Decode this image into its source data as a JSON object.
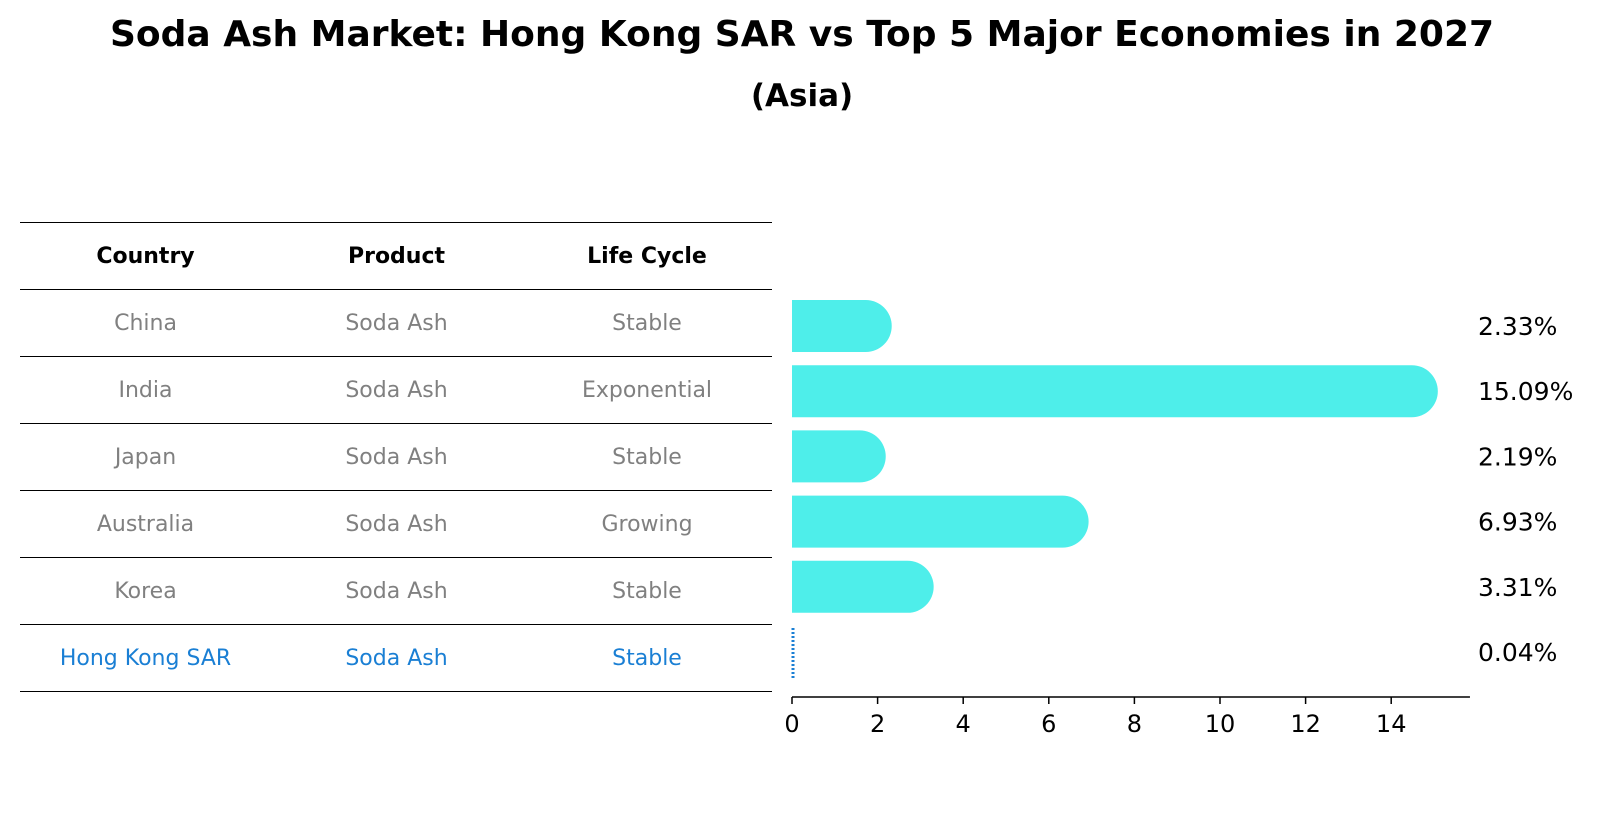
{
  "header": {
    "title": "Soda Ash Market: Hong Kong SAR vs Top 5 Major Economies in 2027",
    "subtitle": "(Asia)"
  },
  "table": {
    "columns": [
      "Country",
      "Product",
      "Life Cycle"
    ],
    "rows": [
      [
        "China",
        "Soda Ash",
        "Stable"
      ],
      [
        "India",
        "Soda Ash",
        "Exponential"
      ],
      [
        "Japan",
        "Soda Ash",
        "Stable"
      ],
      [
        "Australia",
        "Soda Ash",
        "Growing"
      ],
      [
        "Korea",
        "Soda Ash",
        "Stable"
      ],
      [
        "Hong Kong SAR",
        "Soda Ash",
        "Stable"
      ]
    ]
  },
  "colors": {
    "bar": "#4eeeea",
    "highlight": "#1a7fd4",
    "muted": "#808080"
  },
  "chart_data": {
    "type": "bar",
    "orientation": "horizontal",
    "title": "Soda Ash Market: Hong Kong SAR vs Top 5 Major Economies in 2027",
    "subtitle": "(Asia)",
    "categories": [
      "China",
      "India",
      "Japan",
      "Australia",
      "Korea",
      "Hong Kong SAR"
    ],
    "values": [
      2.33,
      15.09,
      2.19,
      6.93,
      3.31,
      0.04
    ],
    "value_labels": [
      "2.33%",
      "15.09%",
      "2.19%",
      "6.93%",
      "3.31%",
      "0.04%"
    ],
    "xticks": [
      0,
      2,
      4,
      6,
      8,
      10,
      12,
      14
    ],
    "xlim": [
      0,
      15.84
    ],
    "xlabel": "",
    "ylabel": "",
    "grid": false,
    "highlight_category": "Hong Kong SAR"
  }
}
